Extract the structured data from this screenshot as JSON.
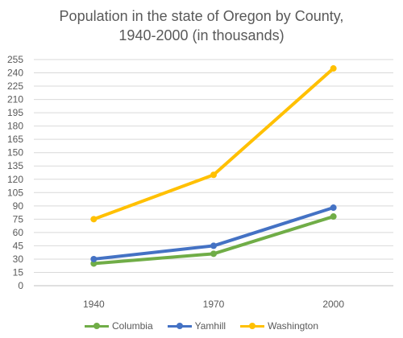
{
  "chart_data": {
    "type": "line",
    "title_line1": "Population in the state of Oregon by County,",
    "title_line2": "1940-2000 (in thousands)",
    "categories": [
      "1940",
      "1970",
      "2000"
    ],
    "y_ticks": [
      "0",
      "15",
      "30",
      "45",
      "60",
      "75",
      "90",
      "105",
      "120",
      "135",
      "150",
      "165",
      "180",
      "195",
      "210",
      "225",
      "240",
      "255"
    ],
    "ylim": [
      0,
      255
    ],
    "grid": true,
    "legend_position": "bottom",
    "series": [
      {
        "name": "Columbia",
        "color": "#70ad47",
        "values": [
          25,
          36,
          78
        ]
      },
      {
        "name": "Yamhill",
        "color": "#4472c4",
        "values": [
          30,
          45,
          88
        ]
      },
      {
        "name": "Washington",
        "color": "#ffc000",
        "values": [
          75,
          125,
          245
        ]
      }
    ]
  }
}
